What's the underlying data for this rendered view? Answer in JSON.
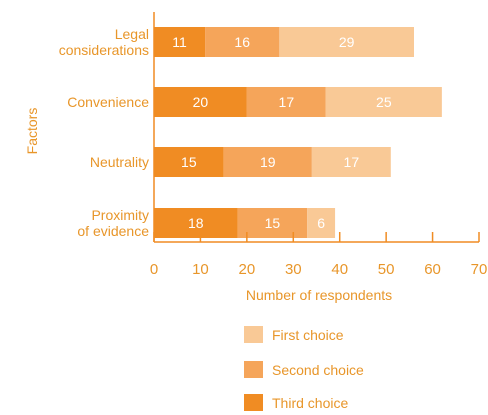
{
  "chart_data": {
    "type": "bar",
    "orientation": "horizontal",
    "stacked": true,
    "categories": [
      "Legal considerations",
      "Convenience",
      "Neutrality",
      "Proximity of evidence"
    ],
    "category_label_lines": [
      [
        "Legal",
        "considerations"
      ],
      [
        "Convenience"
      ],
      [
        "Neutrality"
      ],
      [
        "Proximity",
        "of evidence"
      ]
    ],
    "series": [
      {
        "name": "Third choice",
        "values": [
          11,
          20,
          15,
          18
        ],
        "color": "#f08c23"
      },
      {
        "name": "Second choice",
        "values": [
          16,
          17,
          19,
          15
        ],
        "color": "#f5a55a"
      },
      {
        "name": "First choice",
        "values": [
          29,
          25,
          17,
          6
        ],
        "color": "#f9c996"
      }
    ],
    "legend_order": [
      "First choice",
      "Second choice",
      "Third choice"
    ],
    "xlabel": "Number of respondents",
    "ylabel": "Factors",
    "xlim": [
      0,
      70
    ],
    "xticks": [
      0,
      10,
      20,
      30,
      40,
      50,
      60,
      70
    ],
    "grid": false,
    "legend_position": "bottom",
    "axis_color": "#f08c23",
    "text_color": "#e8962a"
  }
}
